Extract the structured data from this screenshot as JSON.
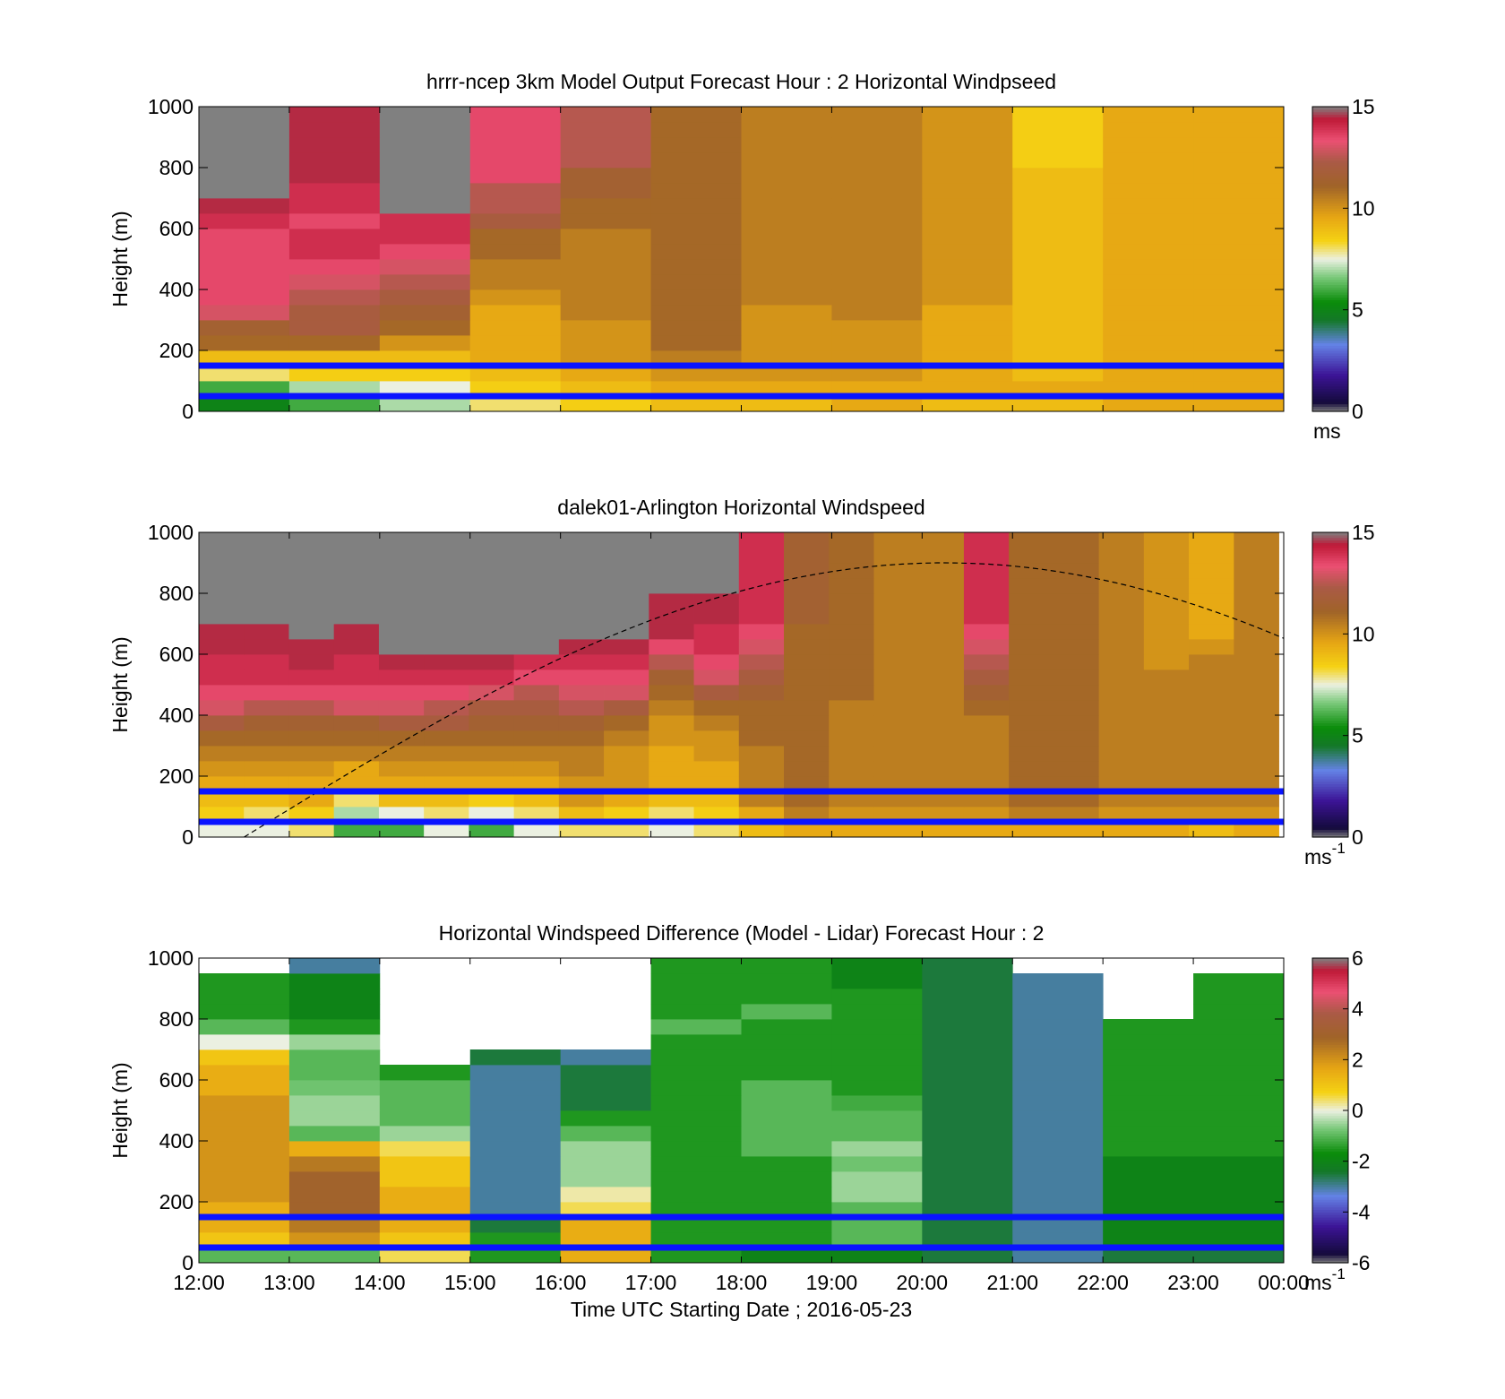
{
  "chart_data": [
    {
      "type": "heatmap",
      "title": "hrrr-ncep 3km Model Output   Forecast Hour : 2 Horizontal Windpseed",
      "ylabel": "Height (m)",
      "ylim": [
        0,
        1000
      ],
      "yticks": [
        0,
        200,
        400,
        600,
        800,
        1000
      ],
      "x_categories": [
        "12:00",
        "13:00",
        "14:00",
        "15:00",
        "16:00",
        "17:00",
        "18:00",
        "19:00",
        "20:00",
        "21:00",
        "22:00",
        "23:00"
      ],
      "y_rows": [
        25,
        75,
        125,
        175,
        225,
        275,
        325,
        375,
        425,
        475,
        525,
        575,
        625,
        675,
        725,
        775,
        825,
        875,
        925,
        975
      ],
      "values": [
        [
          5,
          6,
          7,
          8,
          8.5,
          9,
          9,
          9.5,
          9,
          9,
          9.5,
          9.5
        ],
        [
          6,
          7,
          7.5,
          8.5,
          9,
          9.5,
          9.5,
          9.5,
          9.5,
          9.5,
          9.5,
          9.5
        ],
        [
          8,
          8.5,
          8.5,
          9,
          9.5,
          10,
          10,
          10,
          9.5,
          9,
          9.5,
          9.5
        ],
        [
          9,
          9,
          9,
          9.5,
          10,
          10.5,
          10,
          10,
          9.5,
          9,
          9.5,
          9.5
        ],
        [
          11,
          11,
          10,
          9.5,
          10,
          11,
          10,
          10,
          9.5,
          9,
          9.5,
          9.5
        ],
        [
          11.5,
          12,
          11,
          9.5,
          10,
          11,
          10,
          10,
          9.5,
          9,
          9.5,
          9.5
        ],
        [
          13,
          12,
          11.5,
          9.5,
          10.5,
          11,
          10,
          10.5,
          9.5,
          9,
          9.5,
          9.5
        ],
        [
          13.5,
          12.5,
          12,
          10,
          10.5,
          11,
          10.5,
          10.5,
          10,
          9,
          9.5,
          9.5
        ],
        [
          13.5,
          13,
          12.5,
          10.5,
          10.5,
          11,
          10.5,
          10.5,
          10,
          9,
          9.5,
          9.5
        ],
        [
          13.5,
          13.5,
          13,
          10.5,
          10.5,
          11,
          10.5,
          10.5,
          10,
          9,
          9.5,
          9.5
        ],
        [
          13.5,
          14,
          13.5,
          11,
          10.5,
          11,
          10.5,
          10.5,
          10,
          9,
          9.5,
          9.5
        ],
        [
          13.5,
          14,
          14,
          11,
          10.5,
          11,
          10.5,
          10.5,
          10,
          9,
          9.5,
          9.5
        ],
        [
          14,
          13.5,
          14,
          12,
          11,
          11,
          10.5,
          10.5,
          10,
          9,
          9.5,
          9.5
        ],
        [
          14.5,
          14,
          15,
          12.5,
          11,
          11,
          10.5,
          10.5,
          10,
          9,
          9.5,
          9.5
        ],
        [
          15,
          14,
          15,
          12.5,
          11.5,
          11,
          10.5,
          10.5,
          10,
          9,
          9.5,
          9.5
        ],
        [
          15,
          14.5,
          15,
          13.5,
          11.5,
          11,
          10.5,
          10.5,
          10,
          9,
          9.5,
          9.5
        ],
        [
          15,
          14.5,
          15,
          13.5,
          12.5,
          11,
          10.5,
          10.5,
          10,
          8.5,
          9.5,
          9.5
        ],
        [
          15,
          14.5,
          15,
          13.5,
          12.5,
          11,
          10.5,
          10.5,
          10,
          8.5,
          9.5,
          9.5
        ],
        [
          15,
          14.5,
          15,
          13.5,
          12.5,
          11,
          10.5,
          10.5,
          10,
          8.5,
          9.5,
          9.5
        ],
        [
          15,
          14.5,
          15,
          13.5,
          12.5,
          11,
          10.5,
          10.5,
          10,
          8.5,
          9.5,
          9.5
        ]
      ],
      "reference_lines_height_m": [
        50,
        150
      ],
      "colorbar": {
        "min": 0,
        "max": 15,
        "ticks": [
          0,
          5,
          10,
          15
        ],
        "unit": "ms"
      },
      "grid": false
    },
    {
      "type": "heatmap",
      "title": "dalek01-Arlington  Horizontal Windspeed",
      "ylabel": "Height (m)",
      "ylim": [
        0,
        1000
      ],
      "yticks": [
        0,
        200,
        400,
        600,
        800,
        1000
      ],
      "x_range_hours": [
        12,
        24
      ],
      "columns": 24,
      "y_rows": [
        25,
        75,
        125,
        175,
        225,
        275,
        325,
        375,
        425,
        475,
        525,
        575,
        625,
        675,
        725,
        775,
        825,
        875,
        925,
        975
      ],
      "values": [
        [
          7.5,
          7.5,
          8,
          6,
          6,
          7.5,
          6,
          7.5,
          8,
          8,
          7.5,
          8,
          9,
          9.5,
          9.5,
          9.5,
          9.5,
          9.5,
          9.5,
          9.5,
          9.5,
          9.5,
          9,
          9.5
        ],
        [
          8.5,
          8,
          8.5,
          7,
          7.5,
          8,
          7.5,
          8,
          9,
          8.5,
          8,
          8.5,
          9.5,
          10.5,
          10,
          10,
          10,
          10,
          10.5,
          10.5,
          10,
          10,
          10,
          10
        ],
        [
          9,
          9,
          9.5,
          8,
          9,
          9,
          8.5,
          9,
          10,
          9.5,
          9,
          9,
          10.5,
          11,
          10.5,
          10.5,
          10.5,
          10.5,
          11,
          11,
          10.5,
          10.5,
          10.5,
          10.5
        ],
        [
          9.5,
          9.5,
          9.5,
          9.5,
          9.5,
          9.5,
          9.5,
          9.5,
          10,
          10,
          9.5,
          9.5,
          10.5,
          11,
          10.5,
          10.5,
          10.5,
          10.5,
          11,
          11,
          10.5,
          10.5,
          10.5,
          10.5
        ],
        [
          10,
          10,
          10,
          9.5,
          10,
          10,
          10,
          10,
          10.5,
          10,
          9.5,
          9.5,
          10.5,
          11,
          10.5,
          10.5,
          10.5,
          10.5,
          11,
          11,
          10.5,
          10.5,
          10.5,
          10.5
        ],
        [
          10.5,
          10.5,
          10.5,
          10.5,
          10.5,
          10.5,
          10.5,
          10.5,
          10.5,
          10,
          9.5,
          10,
          10.5,
          11,
          10.5,
          10.5,
          10.5,
          10.5,
          11,
          11,
          10.5,
          10.5,
          10.5,
          10.5
        ],
        [
          11,
          11,
          11,
          11,
          11,
          11,
          11,
          11,
          11,
          10.5,
          10,
          10,
          11,
          11,
          10.5,
          10.5,
          10.5,
          10.5,
          11,
          11,
          10.5,
          10.5,
          10.5,
          10.5
        ],
        [
          12,
          11.5,
          11.5,
          11.5,
          12,
          12,
          11.5,
          11.5,
          11.5,
          11,
          10,
          10.5,
          11,
          11,
          10.5,
          10.5,
          10.5,
          10.5,
          11,
          11,
          10.5,
          10.5,
          10.5,
          10.5
        ],
        [
          13,
          12.5,
          12.5,
          13,
          13,
          12.5,
          12,
          12,
          12.5,
          12,
          10.5,
          11,
          11,
          11,
          10.5,
          10.5,
          10.5,
          11,
          11,
          11,
          10.5,
          10.5,
          10.5,
          10.5
        ],
        [
          13.5,
          13.5,
          13.5,
          13.5,
          13.5,
          13.5,
          13,
          12.5,
          13,
          13,
          11,
          12,
          11.5,
          11,
          11,
          10.5,
          10.5,
          11.5,
          11,
          11,
          10.5,
          10.5,
          10.5,
          10.5
        ],
        [
          14,
          14,
          14,
          14,
          14,
          14,
          14,
          13.5,
          13.5,
          13.5,
          11.5,
          13,
          12,
          11,
          11,
          10.5,
          10.5,
          12,
          11,
          11,
          10.5,
          10.5,
          10.5,
          10.5
        ],
        [
          14,
          14,
          14.5,
          14,
          14.5,
          14.5,
          14.5,
          14,
          14,
          14,
          12.5,
          13.5,
          12.5,
          11,
          11,
          10.5,
          10.5,
          12.5,
          11,
          11,
          10.5,
          10,
          10.5,
          10.5
        ],
        [
          14.5,
          14.5,
          14.5,
          14.5,
          15,
          15,
          15,
          15,
          14.5,
          14.5,
          13.5,
          14,
          13,
          11,
          11,
          10.5,
          10.5,
          13,
          11,
          11,
          10.5,
          10,
          10,
          10.5
        ],
        [
          14.5,
          14.5,
          15,
          14.5,
          15,
          15,
          15,
          15,
          15,
          15,
          14.5,
          14,
          13.5,
          11,
          11,
          10.5,
          10.5,
          13.5,
          11,
          11,
          10.5,
          10,
          9.5,
          10.5
        ],
        [
          15,
          15,
          15,
          15,
          15,
          15,
          15,
          15,
          15,
          15,
          14.5,
          14.5,
          14,
          11.5,
          11,
          10.5,
          10.5,
          14,
          11,
          11,
          10.5,
          10,
          9.5,
          10.5
        ],
        [
          15,
          15,
          15,
          15,
          15,
          15,
          15,
          15,
          15,
          15,
          14.5,
          14.5,
          14,
          11.5,
          11,
          10.5,
          10.5,
          14,
          11,
          11,
          10.5,
          10,
          9.5,
          10.5
        ],
        [
          15,
          15,
          15,
          15,
          15,
          15,
          15,
          15,
          15,
          15,
          15,
          15,
          14,
          11.5,
          11,
          10.5,
          10.5,
          14,
          11,
          11,
          10.5,
          10,
          9.5,
          10.5
        ],
        [
          15,
          15,
          15,
          15,
          15,
          15,
          15,
          15,
          15,
          15,
          15,
          15,
          14,
          11.5,
          11,
          10.5,
          10.5,
          14,
          11,
          11,
          10.5,
          10,
          9.5,
          10.5
        ],
        [
          15,
          15,
          15,
          15,
          15,
          15,
          15,
          15,
          15,
          15,
          15,
          15,
          14,
          11.5,
          11,
          10.5,
          10.5,
          14,
          11,
          11,
          10.5,
          10,
          9.5,
          10.5
        ],
        [
          15,
          15,
          15,
          15,
          15,
          15,
          15,
          15,
          15,
          15,
          15,
          15,
          14,
          11.5,
          11,
          10.5,
          10.5,
          14,
          11,
          11,
          10.5,
          10,
          9.5,
          10.5
        ]
      ],
      "reference_lines_height_m": [
        50,
        150
      ],
      "dashed_curve": true,
      "colorbar": {
        "min": 0,
        "max": 15,
        "ticks": [
          0,
          5,
          10,
          15
        ],
        "unit": "ms",
        "unit_exponent": "-1"
      },
      "grid": false
    },
    {
      "type": "heatmap",
      "title": "Horizontal Windspeed Difference (Model - Lidar) Forecast Hour : 2",
      "ylabel": "Height (m)",
      "xlabel": "Time UTC  Starting Date ; 2016-05-23",
      "ylim": [
        0,
        1000
      ],
      "yticks": [
        0,
        200,
        400,
        600,
        800,
        1000
      ],
      "xticks": [
        "12:00",
        "13:00",
        "14:00",
        "15:00",
        "16:00",
        "17:00",
        "18:00",
        "19:00",
        "20:00",
        "21:00",
        "22:00",
        "23:00",
        "00:00"
      ],
      "x_categories": [
        "12:00",
        "13:00",
        "14:00",
        "15:00",
        "16:00",
        "17:00",
        "18:00",
        "19:00",
        "20:00",
        "21:00",
        "22:00",
        "23:00"
      ],
      "y_rows": [
        25,
        75,
        125,
        175,
        225,
        275,
        325,
        375,
        425,
        475,
        525,
        575,
        625,
        675,
        725,
        775,
        825,
        875,
        925,
        975
      ],
      "values": [
        [
          -1,
          -1,
          0.5,
          -1.5,
          1.5,
          -1.5,
          -2,
          -2,
          -2.5,
          -3,
          -2.5,
          -2.5
        ],
        [
          1,
          2,
          1,
          -1.5,
          1.5,
          -1.5,
          -1.5,
          -1,
          -2.5,
          -3,
          -2,
          -2
        ],
        [
          1.5,
          2.5,
          1.5,
          -2.5,
          1.5,
          -1.5,
          -1.5,
          -1,
          -2.5,
          -3,
          -2,
          -2
        ],
        [
          1.5,
          3,
          1.5,
          -3,
          0.5,
          -1.5,
          -1.5,
          -1,
          -2.5,
          -3,
          -2,
          -2
        ],
        [
          2,
          3,
          1.5,
          -3,
          0.2,
          -1.5,
          -1.5,
          -0.5,
          -2.5,
          -3,
          -2,
          -2
        ],
        [
          2,
          3,
          1,
          -3,
          -0.5,
          -1.5,
          -1.5,
          -0.5,
          -2.5,
          -3,
          -2,
          -2
        ],
        [
          2,
          2.5,
          1,
          -3,
          -0.5,
          -1.5,
          -1.5,
          -0.8,
          -2.5,
          -3,
          -2,
          -2
        ],
        [
          2,
          1.5,
          0.5,
          -3,
          -0.5,
          -1.5,
          -1,
          -0.5,
          -2.5,
          -3,
          -1.5,
          -1.5
        ],
        [
          2,
          -1,
          -0.5,
          -3,
          -1,
          -1.5,
          -1,
          -1,
          -2.5,
          -3,
          -1.5,
          -1.5
        ],
        [
          2,
          -0.5,
          -1,
          -3,
          -1.5,
          -1.5,
          -1,
          -1,
          -2.5,
          -3,
          -1.5,
          -1.5
        ],
        [
          2,
          -0.5,
          -1,
          -3,
          -2.5,
          -1.5,
          -1,
          -1.2,
          -2.5,
          -3,
          -1.5,
          -1.5
        ],
        [
          1.5,
          -0.8,
          -1,
          -3,
          -2.5,
          -1.5,
          -1,
          -1.5,
          -2.5,
          -3,
          -1.5,
          -1.5
        ],
        [
          1.5,
          -1,
          -1.5,
          -3,
          -2.5,
          -1.5,
          -1.5,
          -1.5,
          -2.5,
          -3,
          -1.5,
          -1.5
        ],
        [
          1,
          -1,
          null,
          -2.5,
          -3,
          -1.5,
          -1.5,
          -1.5,
          -2.5,
          -3,
          -1.5,
          -1.5
        ],
        [
          0,
          -0.5,
          null,
          null,
          null,
          -1.5,
          -1.5,
          -1.5,
          -2.5,
          -3,
          -1.5,
          -1.5
        ],
        [
          -1,
          -1.5,
          null,
          null,
          null,
          -1,
          -1.5,
          -1.5,
          -2.5,
          -3,
          -1.5,
          -1.5
        ],
        [
          -1.5,
          -2,
          null,
          null,
          null,
          -1.5,
          -1,
          -1.5,
          -2.5,
          -3,
          null,
          -1.5
        ],
        [
          -1.5,
          -2,
          null,
          null,
          null,
          -1.5,
          -1.5,
          -1.5,
          -2.5,
          -3,
          null,
          -1.5
        ],
        [
          -1.5,
          -2,
          null,
          null,
          null,
          -1.5,
          -1.5,
          -2,
          -2.5,
          -3,
          null,
          -1.5
        ],
        [
          null,
          -3,
          null,
          null,
          null,
          -1.5,
          -1.5,
          -2,
          -2.5,
          null,
          null,
          null
        ]
      ],
      "reference_lines_height_m": [
        50,
        150
      ],
      "colorbar": {
        "min": -6,
        "max": 6,
        "ticks": [
          -6,
          -4,
          -2,
          0,
          2,
          4,
          6
        ],
        "unit": "ms",
        "unit_exponent": "-1"
      },
      "grid": false
    }
  ]
}
